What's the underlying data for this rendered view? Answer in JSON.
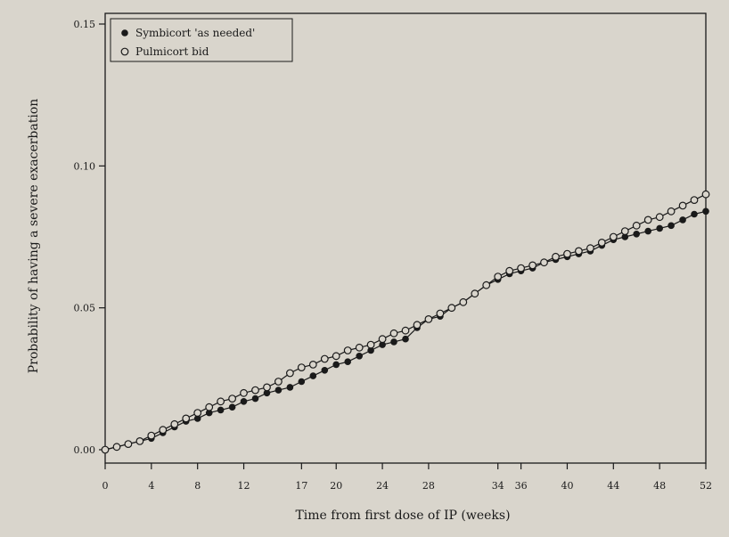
{
  "chart_data": {
    "type": "line",
    "title": "",
    "xlabel": "Time from first dose of IP (weeks)",
    "ylabel": "Probability of having a severe exacerbation",
    "xlim": [
      0,
      52
    ],
    "ylim": [
      0,
      0.15
    ],
    "x_ticks": [
      0,
      4,
      8,
      12,
      17,
      20,
      24,
      28,
      34,
      36,
      40,
      44,
      48,
      52
    ],
    "y_ticks": [
      0.0,
      0.05,
      0.1,
      0.15
    ],
    "y_tick_labels": [
      "0.00",
      "0.05",
      "0.10",
      "0.15"
    ],
    "legend": "top-left",
    "grid": false,
    "series": [
      {
        "name": "Symbicort 'as needed'",
        "marker": "filled-circle",
        "color": "#1a1a1a",
        "x": [
          0,
          1,
          2,
          3,
          4,
          5,
          6,
          7,
          8,
          9,
          10,
          11,
          12,
          13,
          14,
          15,
          16,
          17,
          18,
          19,
          20,
          21,
          22,
          23,
          24,
          25,
          26,
          27,
          28,
          29,
          30,
          31,
          32,
          33,
          34,
          35,
          36,
          37,
          38,
          39,
          40,
          41,
          42,
          43,
          44,
          45,
          46,
          47,
          48,
          49,
          50,
          51,
          52
        ],
        "y": [
          0.0,
          0.001,
          0.002,
          0.003,
          0.004,
          0.006,
          0.008,
          0.01,
          0.011,
          0.013,
          0.014,
          0.015,
          0.017,
          0.018,
          0.02,
          0.021,
          0.022,
          0.024,
          0.026,
          0.028,
          0.03,
          0.031,
          0.033,
          0.035,
          0.037,
          0.038,
          0.039,
          0.043,
          0.046,
          0.047,
          0.05,
          0.052,
          0.055,
          0.058,
          0.06,
          0.062,
          0.063,
          0.064,
          0.066,
          0.067,
          0.068,
          0.069,
          0.07,
          0.072,
          0.074,
          0.075,
          0.076,
          0.077,
          0.078,
          0.079,
          0.081,
          0.083,
          0.084
        ]
      },
      {
        "name": "Pulmicort bid",
        "marker": "open-circle",
        "color": "#1a1a1a",
        "x": [
          0,
          1,
          2,
          3,
          4,
          5,
          6,
          7,
          8,
          9,
          10,
          11,
          12,
          13,
          14,
          15,
          16,
          17,
          18,
          19,
          20,
          21,
          22,
          23,
          24,
          25,
          26,
          27,
          28,
          29,
          30,
          31,
          32,
          33,
          34,
          35,
          36,
          37,
          38,
          39,
          40,
          41,
          42,
          43,
          44,
          45,
          46,
          47,
          48,
          49,
          50,
          51,
          52
        ],
        "y": [
          0.0,
          0.001,
          0.002,
          0.003,
          0.005,
          0.007,
          0.009,
          0.011,
          0.013,
          0.015,
          0.017,
          0.018,
          0.02,
          0.021,
          0.022,
          0.024,
          0.027,
          0.029,
          0.03,
          0.032,
          0.033,
          0.035,
          0.036,
          0.037,
          0.039,
          0.041,
          0.042,
          0.044,
          0.046,
          0.048,
          0.05,
          0.052,
          0.055,
          0.058,
          0.061,
          0.063,
          0.064,
          0.065,
          0.066,
          0.068,
          0.069,
          0.07,
          0.071,
          0.073,
          0.075,
          0.077,
          0.079,
          0.081,
          0.082,
          0.084,
          0.086,
          0.088,
          0.09
        ]
      }
    ]
  }
}
